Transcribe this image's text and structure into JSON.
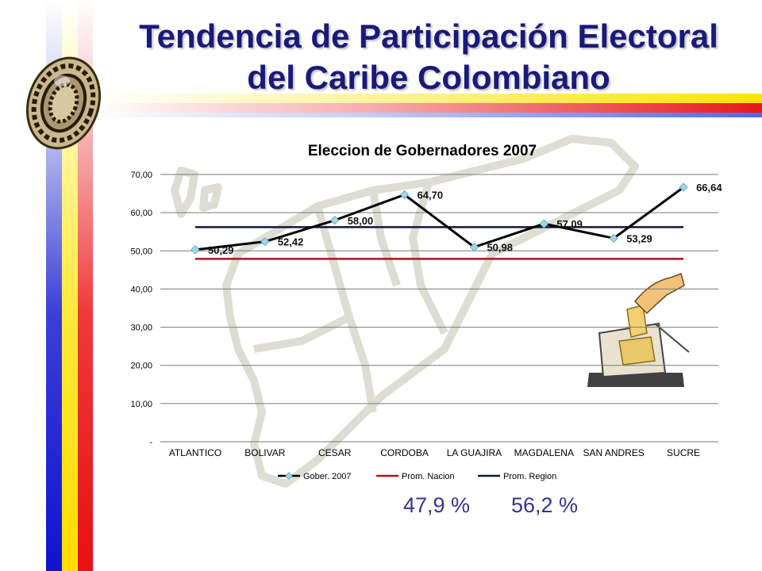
{
  "slide": {
    "title_line1": "Tendencia de Participación Electoral",
    "title_line2": "del Caribe Colombiano"
  },
  "summary": {
    "nacion_pct": "47,9 %",
    "region_pct": "56,2 %"
  },
  "colors": {
    "gober": "#000000",
    "gober_marker": "#9ed8e8",
    "nacion": "#b0121c",
    "region": "#141442",
    "title": "#1a1a7a"
  },
  "chart_data": {
    "type": "line",
    "title": "Eleccion de Gobernadores 2007",
    "categories": [
      "ATLANTICO",
      "BOLIVAR",
      "CESAR",
      "CORDOBA",
      "LA GUAJIRA",
      "MAGDALENA",
      "SAN ANDRES",
      "SUCRE"
    ],
    "ylim": [
      0,
      70
    ],
    "yticks": [
      0,
      10,
      20,
      30,
      40,
      50,
      60,
      70
    ],
    "ytick_labels": [
      "-",
      "10,00",
      "20,00",
      "30,00",
      "40,00",
      "50,00",
      "60,00",
      "70,00"
    ],
    "grid": true,
    "legend_position": "bottom",
    "series": [
      {
        "name": "Gober. 2007",
        "values": [
          50.29,
          52.42,
          58.0,
          64.7,
          50.98,
          57.09,
          53.29,
          66.64
        ],
        "labels": [
          "50,29",
          "52,42",
          "58,00",
          "64,70",
          "50,98",
          "57,09",
          "53,29",
          "66,64"
        ]
      },
      {
        "name": "Prom. Nacion",
        "values": [
          47.9,
          47.9,
          47.9,
          47.9,
          47.9,
          47.9,
          47.9,
          47.9
        ]
      },
      {
        "name": "Prom. Region",
        "values": [
          56.2,
          56.2,
          56.2,
          56.2,
          56.2,
          56.2,
          56.2,
          56.2
        ]
      }
    ]
  }
}
